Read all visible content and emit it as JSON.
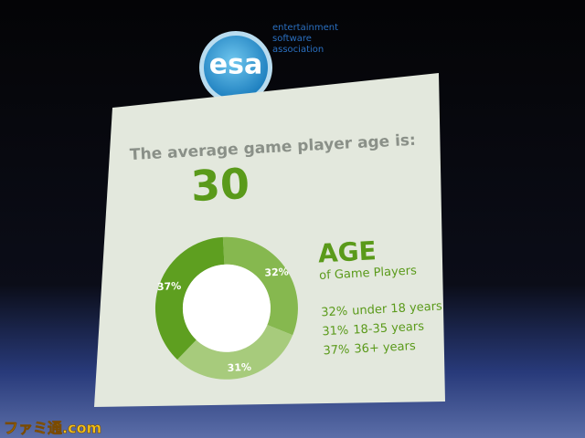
{
  "logo": {
    "mark": "esa",
    "lines": [
      "entertainment",
      "software",
      "association"
    ]
  },
  "chart_data": {
    "type": "pie",
    "donut": true,
    "title": "The average game player age is:",
    "average_age": 30,
    "legend_title": "AGE",
    "legend_subtitle": "of Game Players",
    "categories": [
      "under 18 years",
      "18-35 years",
      "36+ years"
    ],
    "values": [
      32,
      31,
      37
    ],
    "value_labels": [
      "32%",
      "31%",
      "37%"
    ],
    "colors": [
      "#86b84f",
      "#a7cb7c",
      "#5e9f20"
    ]
  },
  "watermark": "ファミ通.com"
}
